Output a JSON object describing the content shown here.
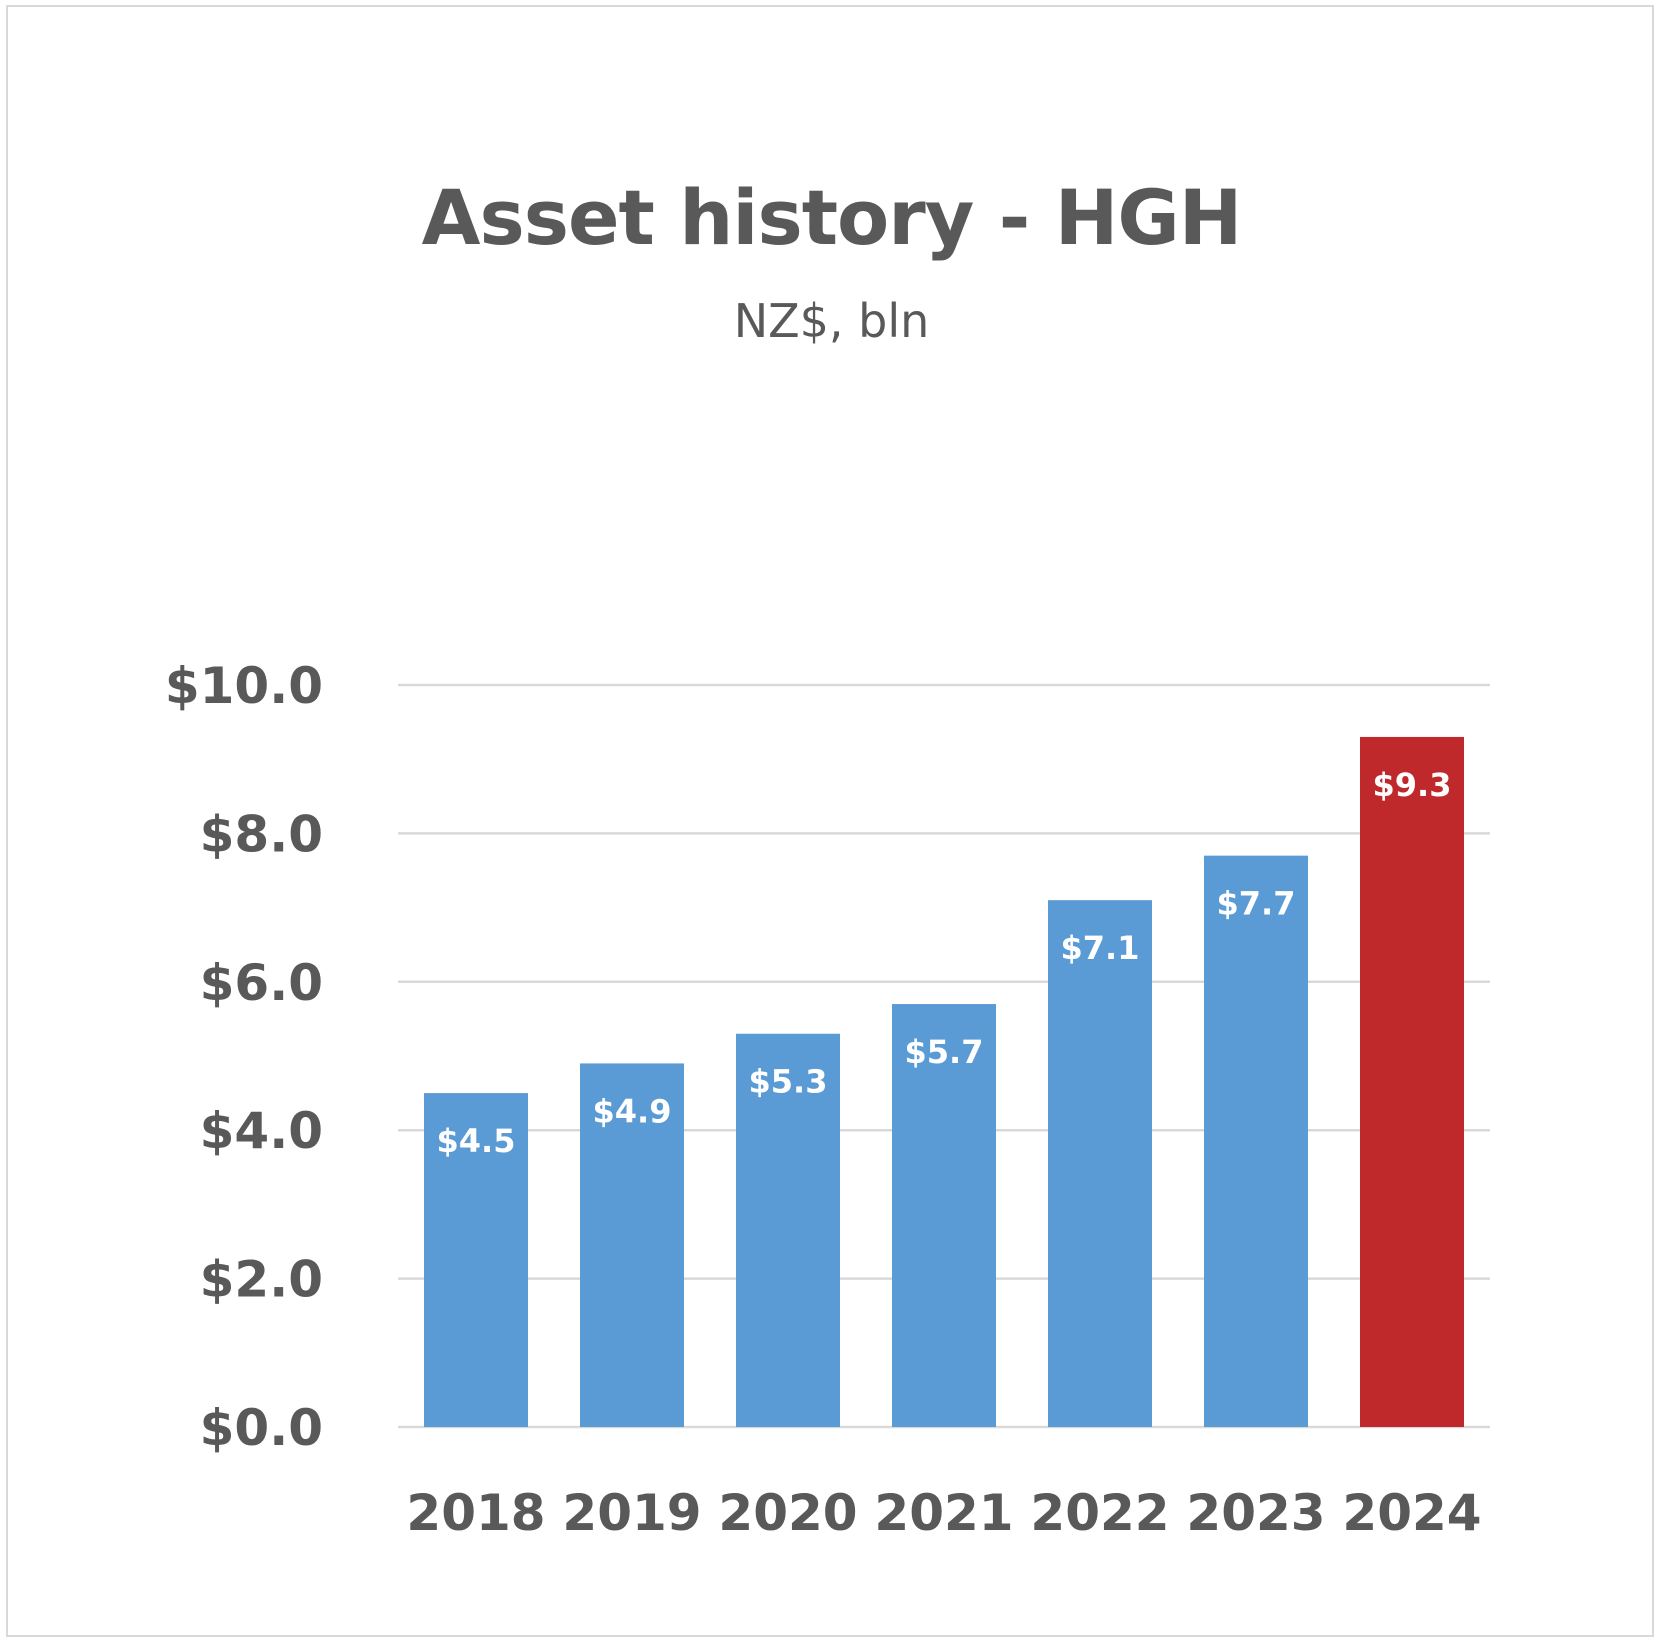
{
  "chart_data": {
    "type": "bar",
    "title": "Asset history - HGH",
    "subtitle": "NZ$, bln",
    "categories": [
      "2018",
      "2019",
      "2020",
      "2021",
      "2022",
      "2023",
      "2024"
    ],
    "values": [
      4.5,
      4.9,
      5.3,
      5.7,
      7.1,
      7.7,
      9.3
    ],
    "value_labels": [
      "$4.5",
      "$4.9",
      "$5.3",
      "$5.7",
      "$7.1",
      "$7.7",
      "$9.3"
    ],
    "ylim": [
      0,
      10
    ],
    "yticks": [
      0,
      2,
      4,
      6,
      8,
      10
    ],
    "ytick_labels": [
      "$0.0",
      "$2.0",
      "$4.0",
      "$6.0",
      "$8.0",
      "$10.0"
    ],
    "xlabel": "",
    "ylabel": "",
    "grid": "horizontal",
    "legend": "none",
    "colors": {
      "bar": "#5b9bd5",
      "highlight_bar": "#c0292b",
      "highlight_category": "2024",
      "grid": "#d9d9d9",
      "text": "#595959",
      "data_label": "#ffffff"
    }
  }
}
